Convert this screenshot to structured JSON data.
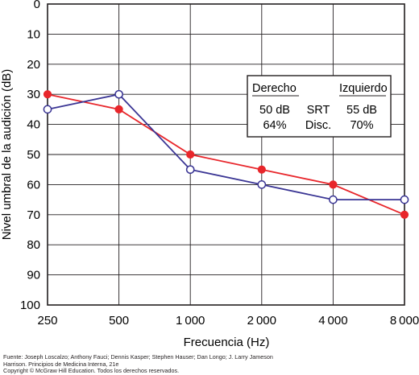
{
  "chart_data": {
    "type": "line",
    "xlabel": "Frecuencia (Hz)",
    "ylabel": "Nivel umbral de la audición (dB)",
    "categories": [
      "250",
      "500",
      "1 000",
      "2 000",
      "4 000",
      "8 000"
    ],
    "ylim": [
      0,
      100
    ],
    "y_inverted": true,
    "y_ticks": [
      "0",
      "10",
      "20",
      "30",
      "40",
      "50",
      "60",
      "70",
      "80",
      "90",
      "100"
    ],
    "grid": true,
    "series": [
      {
        "name": "Derecho",
        "color": "#e8262b",
        "marker": "filled-circle",
        "values": [
          30,
          35,
          50,
          55,
          60,
          70
        ]
      },
      {
        "name": "Izquierdo",
        "color": "#3a3594",
        "marker": "open-circle",
        "values": [
          35,
          30,
          55,
          60,
          65,
          65
        ]
      }
    ],
    "legend": {
      "placement": "top-right",
      "col_left_header": "Derecho",
      "col_right_header": "Izquierdo",
      "rows": [
        {
          "left": "50 dB",
          "middle": "SRT",
          "right": "55 dB"
        },
        {
          "left": "64%",
          "middle": "Disc.",
          "right": "70%"
        }
      ]
    }
  },
  "credit_lines": [
    "Fuente: Joseph Loscalzo; Anthony Fauci; Dennis Kasper; Stephen Hauser; Dan Longo; J. Larry Jameson",
    "Harrison. Principios de Medicina Interna, 21e",
    "Copyright © McGraw Hill Education. Todos los derechos reservados."
  ]
}
